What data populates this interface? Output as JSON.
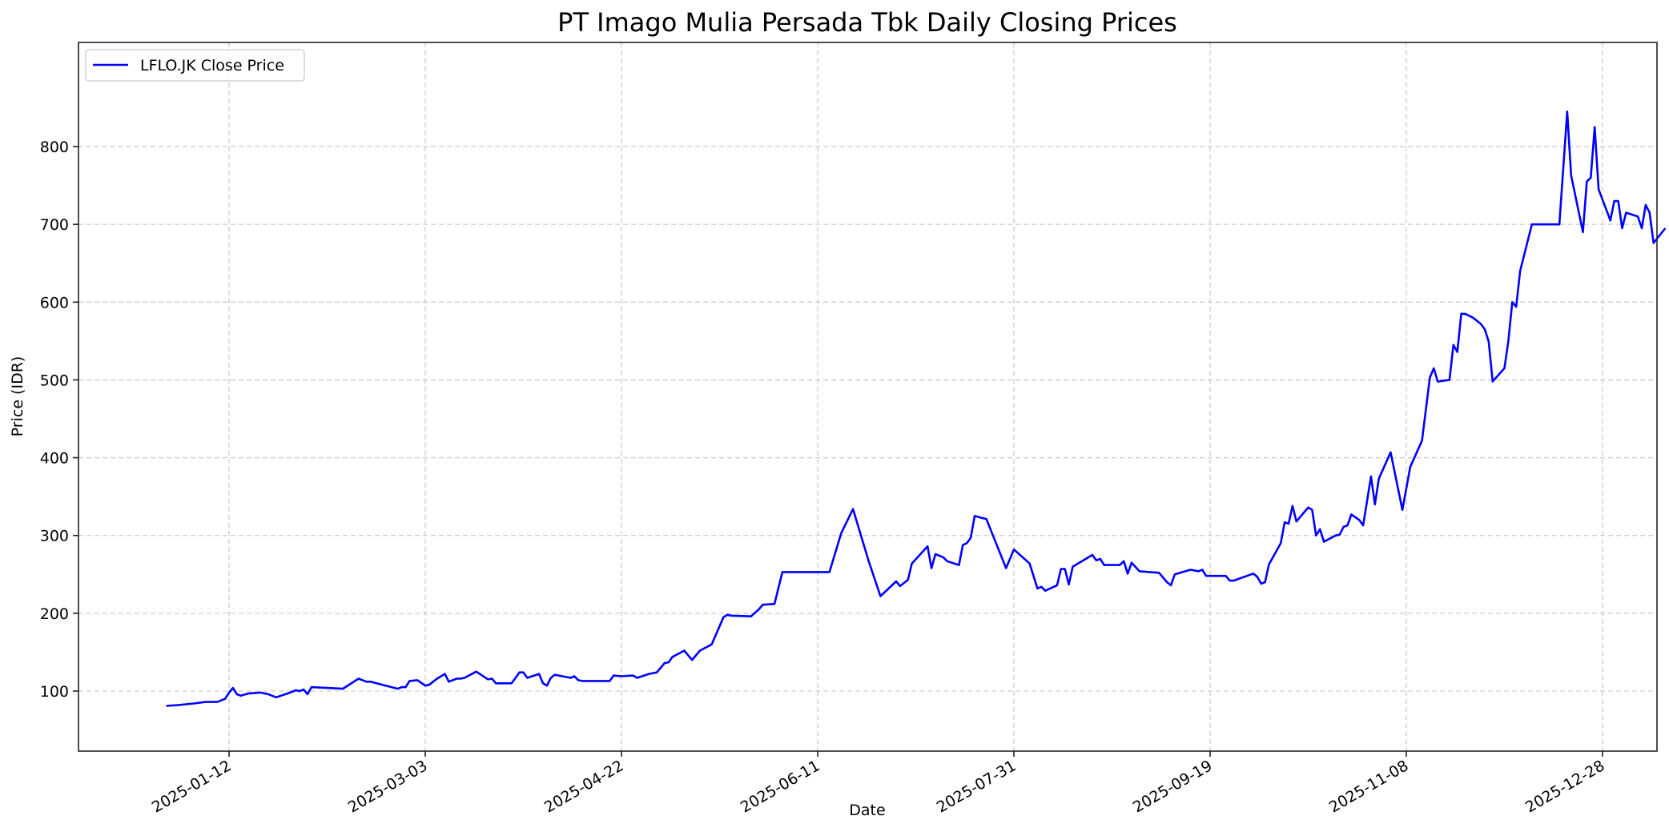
{
  "chart_data": {
    "type": "line",
    "title": "PT Imago Mulia Persada Tbk Daily Closing Prices",
    "xlabel": "Date",
    "ylabel": "Price (IDR)",
    "grid": true,
    "legend": {
      "position": "upper left",
      "entries": [
        "LFLO.JK Close Price"
      ]
    },
    "x_ticks": [
      "2025-01-12",
      "2025-03-03",
      "2025-04-22",
      "2025-06-11",
      "2025-07-31",
      "2025-09-19",
      "2025-11-08",
      "2025-12-28"
    ],
    "y_ticks": [
      100,
      200,
      300,
      400,
      500,
      600,
      700,
      800
    ],
    "ylim": [
      45,
      880
    ],
    "series": [
      {
        "name": "LFLO.JK Close Price",
        "color": "#0000ff",
        "points": [
          [
            "2024-12-27",
            81
          ],
          [
            "2024-12-30",
            82
          ],
          [
            "2025-01-03",
            84
          ],
          [
            "2025-01-06",
            86
          ],
          [
            "2025-01-09",
            86
          ],
          [
            "2025-01-10",
            88
          ],
          [
            "2025-01-11",
            90
          ],
          [
            "2025-01-12",
            98
          ],
          [
            "2025-01-13",
            104
          ],
          [
            "2025-01-14",
            96
          ],
          [
            "2025-01-15",
            94
          ],
          [
            "2025-01-17",
            97
          ],
          [
            "2025-01-20",
            98
          ],
          [
            "2025-01-22",
            96
          ],
          [
            "2025-01-24",
            92
          ],
          [
            "2025-01-27",
            97
          ],
          [
            "2025-01-29",
            101
          ],
          [
            "2025-01-30",
            100
          ],
          [
            "2025-01-31",
            102
          ],
          [
            "2025-02-01",
            96
          ],
          [
            "2025-02-02",
            105
          ],
          [
            "2025-02-10",
            103
          ],
          [
            "2025-02-14",
            116
          ],
          [
            "2025-02-16",
            112
          ],
          [
            "2025-02-17",
            112
          ],
          [
            "2025-02-24",
            103
          ],
          [
            "2025-02-25",
            105
          ],
          [
            "2025-02-26",
            105
          ],
          [
            "2025-02-27",
            113
          ],
          [
            "2025-03-01",
            114
          ],
          [
            "2025-03-03",
            107
          ],
          [
            "2025-03-04",
            108
          ],
          [
            "2025-03-06",
            116
          ],
          [
            "2025-03-08",
            122
          ],
          [
            "2025-03-09",
            112
          ],
          [
            "2025-03-11",
            116
          ],
          [
            "2025-03-12",
            116
          ],
          [
            "2025-03-13",
            117
          ],
          [
            "2025-03-16",
            125
          ],
          [
            "2025-03-19",
            115
          ],
          [
            "2025-03-20",
            116
          ],
          [
            "2025-03-21",
            110
          ],
          [
            "2025-03-25",
            110
          ],
          [
            "2025-03-27",
            124
          ],
          [
            "2025-03-28",
            124
          ],
          [
            "2025-03-29",
            117
          ],
          [
            "2025-04-01",
            122
          ],
          [
            "2025-04-02",
            110
          ],
          [
            "2025-04-03",
            107
          ],
          [
            "2025-04-04",
            117
          ],
          [
            "2025-04-05",
            121
          ],
          [
            "2025-04-09",
            117
          ],
          [
            "2025-04-10",
            119
          ],
          [
            "2025-04-11",
            114
          ],
          [
            "2025-04-12",
            113
          ],
          [
            "2025-04-15",
            113
          ],
          [
            "2025-04-19",
            113
          ],
          [
            "2025-04-20",
            120
          ],
          [
            "2025-04-22",
            119
          ],
          [
            "2025-04-25",
            120
          ],
          [
            "2025-04-26",
            117
          ],
          [
            "2025-04-29",
            122
          ],
          [
            "2025-05-01",
            124
          ],
          [
            "2025-05-03",
            136
          ],
          [
            "2025-05-04",
            137
          ],
          [
            "2025-05-05",
            144
          ],
          [
            "2025-05-08",
            152
          ],
          [
            "2025-05-10",
            140
          ],
          [
            "2025-05-12",
            152
          ],
          [
            "2025-05-15",
            160
          ],
          [
            "2025-05-18",
            195
          ],
          [
            "2025-05-19",
            198
          ],
          [
            "2025-05-20",
            197
          ],
          [
            "2025-05-25",
            196
          ],
          [
            "2025-05-27",
            205
          ],
          [
            "2025-05-28",
            211
          ],
          [
            "2025-05-31",
            212
          ],
          [
            "2025-06-02",
            253
          ],
          [
            "2025-06-11",
            253
          ],
          [
            "2025-06-14",
            253
          ],
          [
            "2025-06-17",
            303
          ],
          [
            "2025-06-20",
            334
          ],
          [
            "2025-06-24",
            267
          ],
          [
            "2025-06-27",
            222
          ],
          [
            "2025-07-01",
            241
          ],
          [
            "2025-07-02",
            235
          ],
          [
            "2025-07-04",
            243
          ],
          [
            "2025-07-05",
            264
          ],
          [
            "2025-07-09",
            286
          ],
          [
            "2025-07-10",
            258
          ],
          [
            "2025-07-11",
            276
          ],
          [
            "2025-07-13",
            272
          ],
          [
            "2025-07-14",
            267
          ],
          [
            "2025-07-17",
            262
          ],
          [
            "2025-07-18",
            288
          ],
          [
            "2025-07-19",
            290
          ],
          [
            "2025-07-20",
            297
          ],
          [
            "2025-07-21",
            325
          ],
          [
            "2025-07-24",
            321
          ],
          [
            "2025-07-29",
            258
          ],
          [
            "2025-07-31",
            282
          ],
          [
            "2025-08-04",
            264
          ],
          [
            "2025-08-06",
            232
          ],
          [
            "2025-08-07",
            234
          ],
          [
            "2025-08-08",
            229
          ],
          [
            "2025-08-11",
            236
          ],
          [
            "2025-08-12",
            257
          ],
          [
            "2025-08-13",
            257
          ],
          [
            "2025-08-14",
            237
          ],
          [
            "2025-08-15",
            260
          ],
          [
            "2025-08-20",
            275
          ],
          [
            "2025-08-21",
            268
          ],
          [
            "2025-08-22",
            270
          ],
          [
            "2025-08-23",
            262
          ],
          [
            "2025-08-27",
            262
          ],
          [
            "2025-08-28",
            267
          ],
          [
            "2025-08-29",
            251
          ],
          [
            "2025-08-30",
            265
          ],
          [
            "2025-09-01",
            254
          ],
          [
            "2025-09-06",
            252
          ],
          [
            "2025-09-08",
            240
          ],
          [
            "2025-09-09",
            236
          ],
          [
            "2025-09-10",
            250
          ],
          [
            "2025-09-14",
            256
          ],
          [
            "2025-09-16",
            254
          ],
          [
            "2025-09-17",
            256
          ],
          [
            "2025-09-18",
            248
          ],
          [
            "2025-09-23",
            248
          ],
          [
            "2025-09-24",
            242
          ],
          [
            "2025-09-25",
            242
          ],
          [
            "2025-09-30",
            251
          ],
          [
            "2025-10-01",
            247
          ],
          [
            "2025-10-02",
            238
          ],
          [
            "2025-10-03",
            240
          ],
          [
            "2025-10-04",
            263
          ],
          [
            "2025-10-07",
            290
          ],
          [
            "2025-10-08",
            317
          ],
          [
            "2025-10-09",
            315
          ],
          [
            "2025-10-10",
            338
          ],
          [
            "2025-10-11",
            318
          ],
          [
            "2025-10-14",
            336
          ],
          [
            "2025-10-15",
            333
          ],
          [
            "2025-10-16",
            300
          ],
          [
            "2025-10-17",
            308
          ],
          [
            "2025-10-18",
            292
          ],
          [
            "2025-10-21",
            300
          ],
          [
            "2025-10-22",
            301
          ],
          [
            "2025-10-23",
            311
          ],
          [
            "2025-10-24",
            313
          ],
          [
            "2025-10-25",
            327
          ],
          [
            "2025-10-27",
            320
          ],
          [
            "2025-10-28",
            313
          ],
          [
            "2025-10-30",
            376
          ],
          [
            "2025-10-31",
            340
          ],
          [
            "2025-11-01",
            373
          ],
          [
            "2025-11-04",
            407
          ],
          [
            "2025-11-07",
            333
          ],
          [
            "2025-11-09",
            388
          ],
          [
            "2025-11-12",
            422
          ],
          [
            "2025-11-14",
            503
          ],
          [
            "2025-11-15",
            515
          ],
          [
            "2025-11-16",
            498
          ],
          [
            "2025-11-19",
            500
          ],
          [
            "2025-11-20",
            545
          ],
          [
            "2025-11-21",
            536
          ],
          [
            "2025-11-22",
            585
          ],
          [
            "2025-11-23",
            585
          ],
          [
            "2025-11-25",
            580
          ],
          [
            "2025-11-27",
            572
          ],
          [
            "2025-11-28",
            565
          ],
          [
            "2025-11-29",
            549
          ],
          [
            "2025-11-30",
            498
          ],
          [
            "2025-12-03",
            515
          ],
          [
            "2025-12-04",
            550
          ],
          [
            "2025-12-05",
            600
          ],
          [
            "2025-12-06",
            594
          ],
          [
            "2025-12-07",
            640
          ],
          [
            "2025-12-10",
            700
          ],
          [
            "2025-12-17",
            700
          ],
          [
            "2025-12-19",
            845
          ],
          [
            "2025-12-20",
            763
          ],
          [
            "2025-12-23",
            690
          ],
          [
            "2025-12-24",
            755
          ],
          [
            "2025-12-25",
            760
          ],
          [
            "2025-12-26",
            825
          ],
          [
            "2025-12-27",
            745
          ],
          [
            "2025-12-30",
            705
          ],
          [
            "2025-12-31",
            730
          ],
          [
            "2026-01-01",
            730
          ],
          [
            "2026-01-02",
            695
          ],
          [
            "2026-01-03",
            715
          ],
          [
            "2026-01-06",
            710
          ],
          [
            "2026-01-07",
            695
          ],
          [
            "2026-01-08",
            725
          ],
          [
            "2026-01-09",
            715
          ],
          [
            "2026-01-10",
            676
          ],
          [
            "2026-01-13",
            695
          ]
        ]
      }
    ]
  }
}
